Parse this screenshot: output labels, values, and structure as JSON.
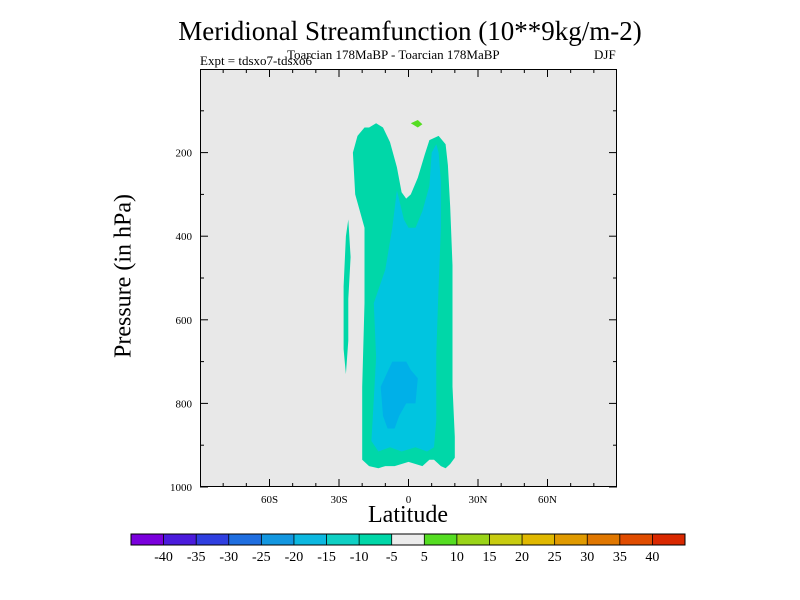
{
  "chart_data": {
    "type": "contour",
    "title": "Meridional Streamfunction (10**9kg/m-2)",
    "subtitle": "Toarcian 178MaBP - Toarcian 178MaBP",
    "expt_label": "Expt = tdsxo7-tdsxo6",
    "season": "DJF",
    "xlabel": "Latitude",
    "ylabel": "Pressure (in hPa)",
    "xlim": [
      -90,
      90
    ],
    "ylim": [
      1000,
      0
    ],
    "x_ticks": [
      {
        "value": -60,
        "label": "60S"
      },
      {
        "value": -30,
        "label": "30S"
      },
      {
        "value": 0,
        "label": "0"
      },
      {
        "value": 30,
        "label": "30N"
      },
      {
        "value": 60,
        "label": "60N"
      }
    ],
    "y_ticks": [
      {
        "value": 200,
        "label": "200"
      },
      {
        "value": 400,
        "label": "400"
      },
      {
        "value": 600,
        "label": "600"
      },
      {
        "value": 800,
        "label": "800"
      },
      {
        "value": 1000,
        "label": "1000"
      }
    ],
    "background_color": "#e8e8e8",
    "contour_regions": [
      {
        "level": -10,
        "color": "#00d7a8",
        "points": [
          [
            -17,
            140
          ],
          [
            -14,
            130
          ],
          [
            -11,
            140
          ],
          [
            -8,
            175
          ],
          [
            -5,
            235
          ],
          [
            -3,
            295
          ],
          [
            -1,
            310
          ],
          [
            1,
            300
          ],
          [
            4,
            260
          ],
          [
            7,
            205
          ],
          [
            9,
            170
          ],
          [
            13,
            160
          ],
          [
            16,
            180
          ],
          [
            17,
            230
          ],
          [
            18,
            330
          ],
          [
            19,
            470
          ],
          [
            19,
            610
          ],
          [
            19,
            760
          ],
          [
            20,
            880
          ],
          [
            20,
            930
          ],
          [
            18,
            945
          ],
          [
            16,
            955
          ],
          [
            14,
            950
          ],
          [
            11,
            935
          ],
          [
            9,
            935
          ],
          [
            6,
            950
          ],
          [
            3,
            945
          ],
          [
            0,
            940
          ],
          [
            -3,
            945
          ],
          [
            -6,
            950
          ],
          [
            -10,
            950
          ],
          [
            -13,
            955
          ],
          [
            -17,
            950
          ],
          [
            -20,
            935
          ],
          [
            -20,
            880
          ],
          [
            -20,
            760
          ],
          [
            -19,
            560
          ],
          [
            -19,
            380
          ],
          [
            -23,
            300
          ],
          [
            -24,
            200
          ],
          [
            -22,
            160
          ],
          [
            -19,
            140
          ]
        ]
      },
      {
        "level": -10,
        "color": "#00d7a8",
        "points": [
          [
            -26,
            360
          ],
          [
            -25,
            450
          ],
          [
            -26,
            550
          ],
          [
            -26,
            650
          ],
          [
            -27,
            730
          ],
          [
            -28,
            670
          ],
          [
            -28,
            520
          ],
          [
            -27,
            400
          ]
        ]
      },
      {
        "level": -15,
        "color": "#00c5e0",
        "points": [
          [
            -5,
            290
          ],
          [
            -7,
            380
          ],
          [
            -10,
            480
          ],
          [
            -15,
            560
          ],
          [
            -14,
            690
          ],
          [
            -15,
            790
          ],
          [
            -16,
            890
          ],
          [
            -13,
            915
          ],
          [
            -8,
            905
          ],
          [
            -3,
            915
          ],
          [
            3,
            905
          ],
          [
            8,
            915
          ],
          [
            11,
            905
          ],
          [
            12,
            840
          ],
          [
            12,
            680
          ],
          [
            13,
            520
          ],
          [
            14,
            380
          ],
          [
            14,
            270
          ],
          [
            13,
            200
          ],
          [
            12,
            180
          ],
          [
            10,
            200
          ],
          [
            9,
            280
          ],
          [
            6,
            340
          ],
          [
            3,
            380
          ],
          [
            0,
            380
          ],
          [
            -2,
            360
          ]
        ]
      },
      {
        "level": -20,
        "color": "#00b0e8",
        "points": [
          [
            -7,
            700
          ],
          [
            -12,
            760
          ],
          [
            -11,
            830
          ],
          [
            -9,
            860
          ],
          [
            -6,
            860
          ],
          [
            -4,
            830
          ],
          [
            -1,
            800
          ],
          [
            3,
            800
          ],
          [
            4,
            740
          ],
          [
            1,
            720
          ],
          [
            -1,
            700
          ]
        ]
      },
      {
        "level": 5,
        "color": "#55dd22",
        "points": [
          [
            1,
            130
          ],
          [
            4,
            122
          ],
          [
            6,
            132
          ],
          [
            4,
            140
          ]
        ]
      }
    ],
    "colorbar": {
      "colors": [
        "#7a00dc",
        "#4b1bdc",
        "#2f3fe0",
        "#1f6ee0",
        "#1397e0",
        "#0cb8e0",
        "#0fd0c4",
        "#00d7a8",
        "#ececec",
        "#55dd22",
        "#9ad418",
        "#c8cc10",
        "#e0b800",
        "#e09a00",
        "#e07700",
        "#e04c00",
        "#d92800"
      ],
      "labels": [
        "-40",
        "-35",
        "-30",
        "-25",
        "-20",
        "-15",
        "-10",
        "-5",
        "5",
        "10",
        "15",
        "20",
        "25",
        "30",
        "35",
        "40"
      ]
    }
  }
}
